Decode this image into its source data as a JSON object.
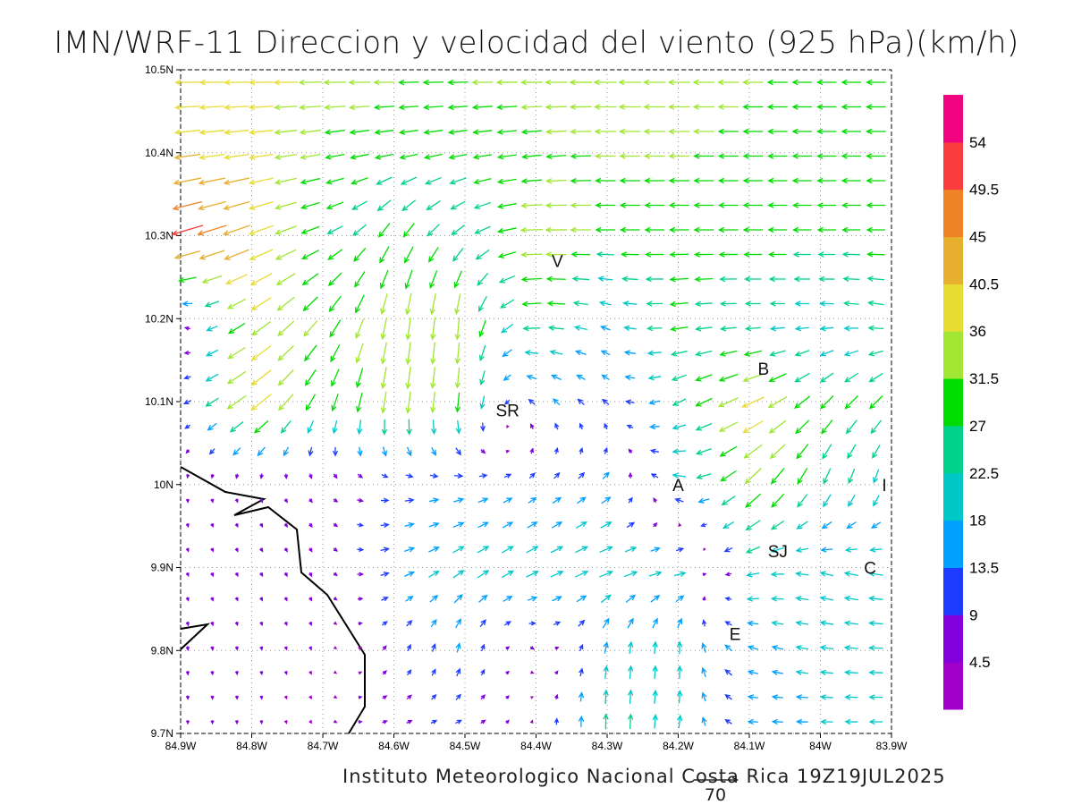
{
  "chart_data": {
    "type": "vector",
    "title": "IMN/WRF-11 Direccion y velocidad del viento (925 hPa)(km/h)",
    "credit": "Instituto Meteorologico Nacional Costa Rica  19Z19JUL2025",
    "units": "km/h",
    "xlim": [
      -84.9,
      -83.9
    ],
    "ylim": [
      9.7,
      10.5
    ],
    "grid": true,
    "x_ticks": [
      {
        "value": -84.9,
        "label": "84.9W"
      },
      {
        "value": -84.8,
        "label": "84.8W"
      },
      {
        "value": -84.7,
        "label": "84.7W"
      },
      {
        "value": -84.6,
        "label": "84.6W"
      },
      {
        "value": -84.5,
        "label": "84.5W"
      },
      {
        "value": -84.4,
        "label": "84.4W"
      },
      {
        "value": -84.3,
        "label": "84.3W"
      },
      {
        "value": -84.2,
        "label": "84.2W"
      },
      {
        "value": -84.1,
        "label": "84.1W"
      },
      {
        "value": -84.0,
        "label": "84W"
      },
      {
        "value": -83.9,
        "label": "83.9W"
      }
    ],
    "y_ticks": [
      {
        "value": 9.7,
        "label": "9.7N"
      },
      {
        "value": 9.8,
        "label": "9.8N"
      },
      {
        "value": 9.9,
        "label": "9.9N"
      },
      {
        "value": 10.0,
        "label": "10N"
      },
      {
        "value": 10.1,
        "label": "10.1N"
      },
      {
        "value": 10.2,
        "label": "10.2N"
      },
      {
        "value": 10.3,
        "label": "10.3N"
      },
      {
        "value": 10.4,
        "label": "10.4N"
      },
      {
        "value": 10.5,
        "label": "10.5N"
      }
    ],
    "colorbar": {
      "labels": [
        "4.5",
        "9",
        "13.5",
        "18",
        "22.5",
        "27",
        "31.5",
        "36",
        "40.5",
        "45",
        "49.5",
        "54"
      ],
      "thresholds": [
        4.5,
        9,
        13.5,
        18,
        22.5,
        27,
        31.5,
        36,
        40.5,
        45,
        49.5,
        54
      ],
      "colors": [
        "#a000c8",
        "#8200dc",
        "#1e3cff",
        "#00a0ff",
        "#00c8c8",
        "#00d28c",
        "#00dc00",
        "#a0e632",
        "#e6dc32",
        "#e6af2d",
        "#f08228",
        "#fa3c3c",
        "#f0047f"
      ]
    },
    "reference_vector": {
      "value": 70,
      "label": "70"
    },
    "wind_grid_lons": [
      -84.9,
      -84.8,
      -84.7,
      -84.6,
      -84.5,
      -84.4,
      -84.3,
      -84.2,
      -84.1,
      -84.0,
      -83.9
    ],
    "wind_grid_lats": [
      10.5,
      10.4,
      10.3,
      10.2,
      10.1,
      10.0,
      9.9,
      9.8,
      9.7
    ],
    "u": [
      [
        -38,
        -38,
        -36,
        -32,
        -32,
        -34,
        -36,
        -34,
        -32,
        -30,
        -30
      ],
      [
        -40,
        -38,
        -30,
        -28,
        -28,
        -30,
        -32,
        -32,
        -30,
        -30,
        -30
      ],
      [
        -50,
        -40,
        -25,
        -15,
        -20,
        -35,
        -30,
        -30,
        -30,
        -28,
        -28
      ],
      [
        -5,
        -30,
        -20,
        -5,
        -3,
        -30,
        -15,
        -28,
        -22,
        -20,
        -25
      ],
      [
        -8,
        -35,
        -10,
        -5,
        -3,
        -10,
        -10,
        -20,
        -35,
        -20,
        -20
      ],
      [
        0,
        2,
        5,
        12,
        15,
        10,
        12,
        -20,
        -25,
        -10,
        -5
      ],
      [
        2,
        3,
        3,
        15,
        18,
        20,
        22,
        20,
        -20,
        -20,
        -22
      ],
      [
        1,
        1,
        2,
        5,
        3,
        5,
        3,
        0,
        -15,
        -20,
        -22
      ],
      [
        0,
        0,
        3,
        8,
        10,
        0,
        0,
        3,
        -15,
        -18,
        -20
      ]
    ],
    "v": [
      [
        0,
        0,
        0,
        0,
        0,
        0,
        0,
        0,
        0,
        0,
        0
      ],
      [
        -5,
        -5,
        -5,
        -5,
        -5,
        -3,
        0,
        0,
        0,
        0,
        0
      ],
      [
        -15,
        -15,
        -10,
        -25,
        -15,
        0,
        0,
        0,
        0,
        0,
        0
      ],
      [
        5,
        -20,
        -25,
        -35,
        -35,
        0,
        5,
        -3,
        0,
        0,
        5
      ],
      [
        -3,
        -25,
        -25,
        -35,
        -30,
        10,
        8,
        -10,
        -15,
        -20,
        -20
      ],
      [
        -5,
        -5,
        -5,
        0,
        3,
        8,
        10,
        5,
        -25,
        -25,
        -20
      ],
      [
        -5,
        -5,
        -6,
        5,
        12,
        10,
        8,
        3,
        -5,
        5,
        3
      ],
      [
        -6,
        -5,
        -4,
        8,
        15,
        -5,
        18,
        20,
        5,
        3,
        0
      ],
      [
        -5,
        -5,
        -3,
        3,
        3,
        5,
        25,
        20,
        0,
        0,
        0
      ]
    ],
    "places": [
      {
        "label": "V",
        "lon": -84.37,
        "lat": 10.27
      },
      {
        "label": "B",
        "lon": -84.08,
        "lat": 10.14
      },
      {
        "label": "SR",
        "lon": -84.44,
        "lat": 10.09
      },
      {
        "label": "A",
        "lon": -84.2,
        "lat": 10.0
      },
      {
        "label": "I",
        "lon": -83.91,
        "lat": 10.0
      },
      {
        "label": "SJ",
        "lon": -84.06,
        "lat": 9.92
      },
      {
        "label": "C",
        "lon": -83.93,
        "lat": 9.9
      },
      {
        "label": "E",
        "lon": -84.12,
        "lat": 9.82
      }
    ]
  }
}
